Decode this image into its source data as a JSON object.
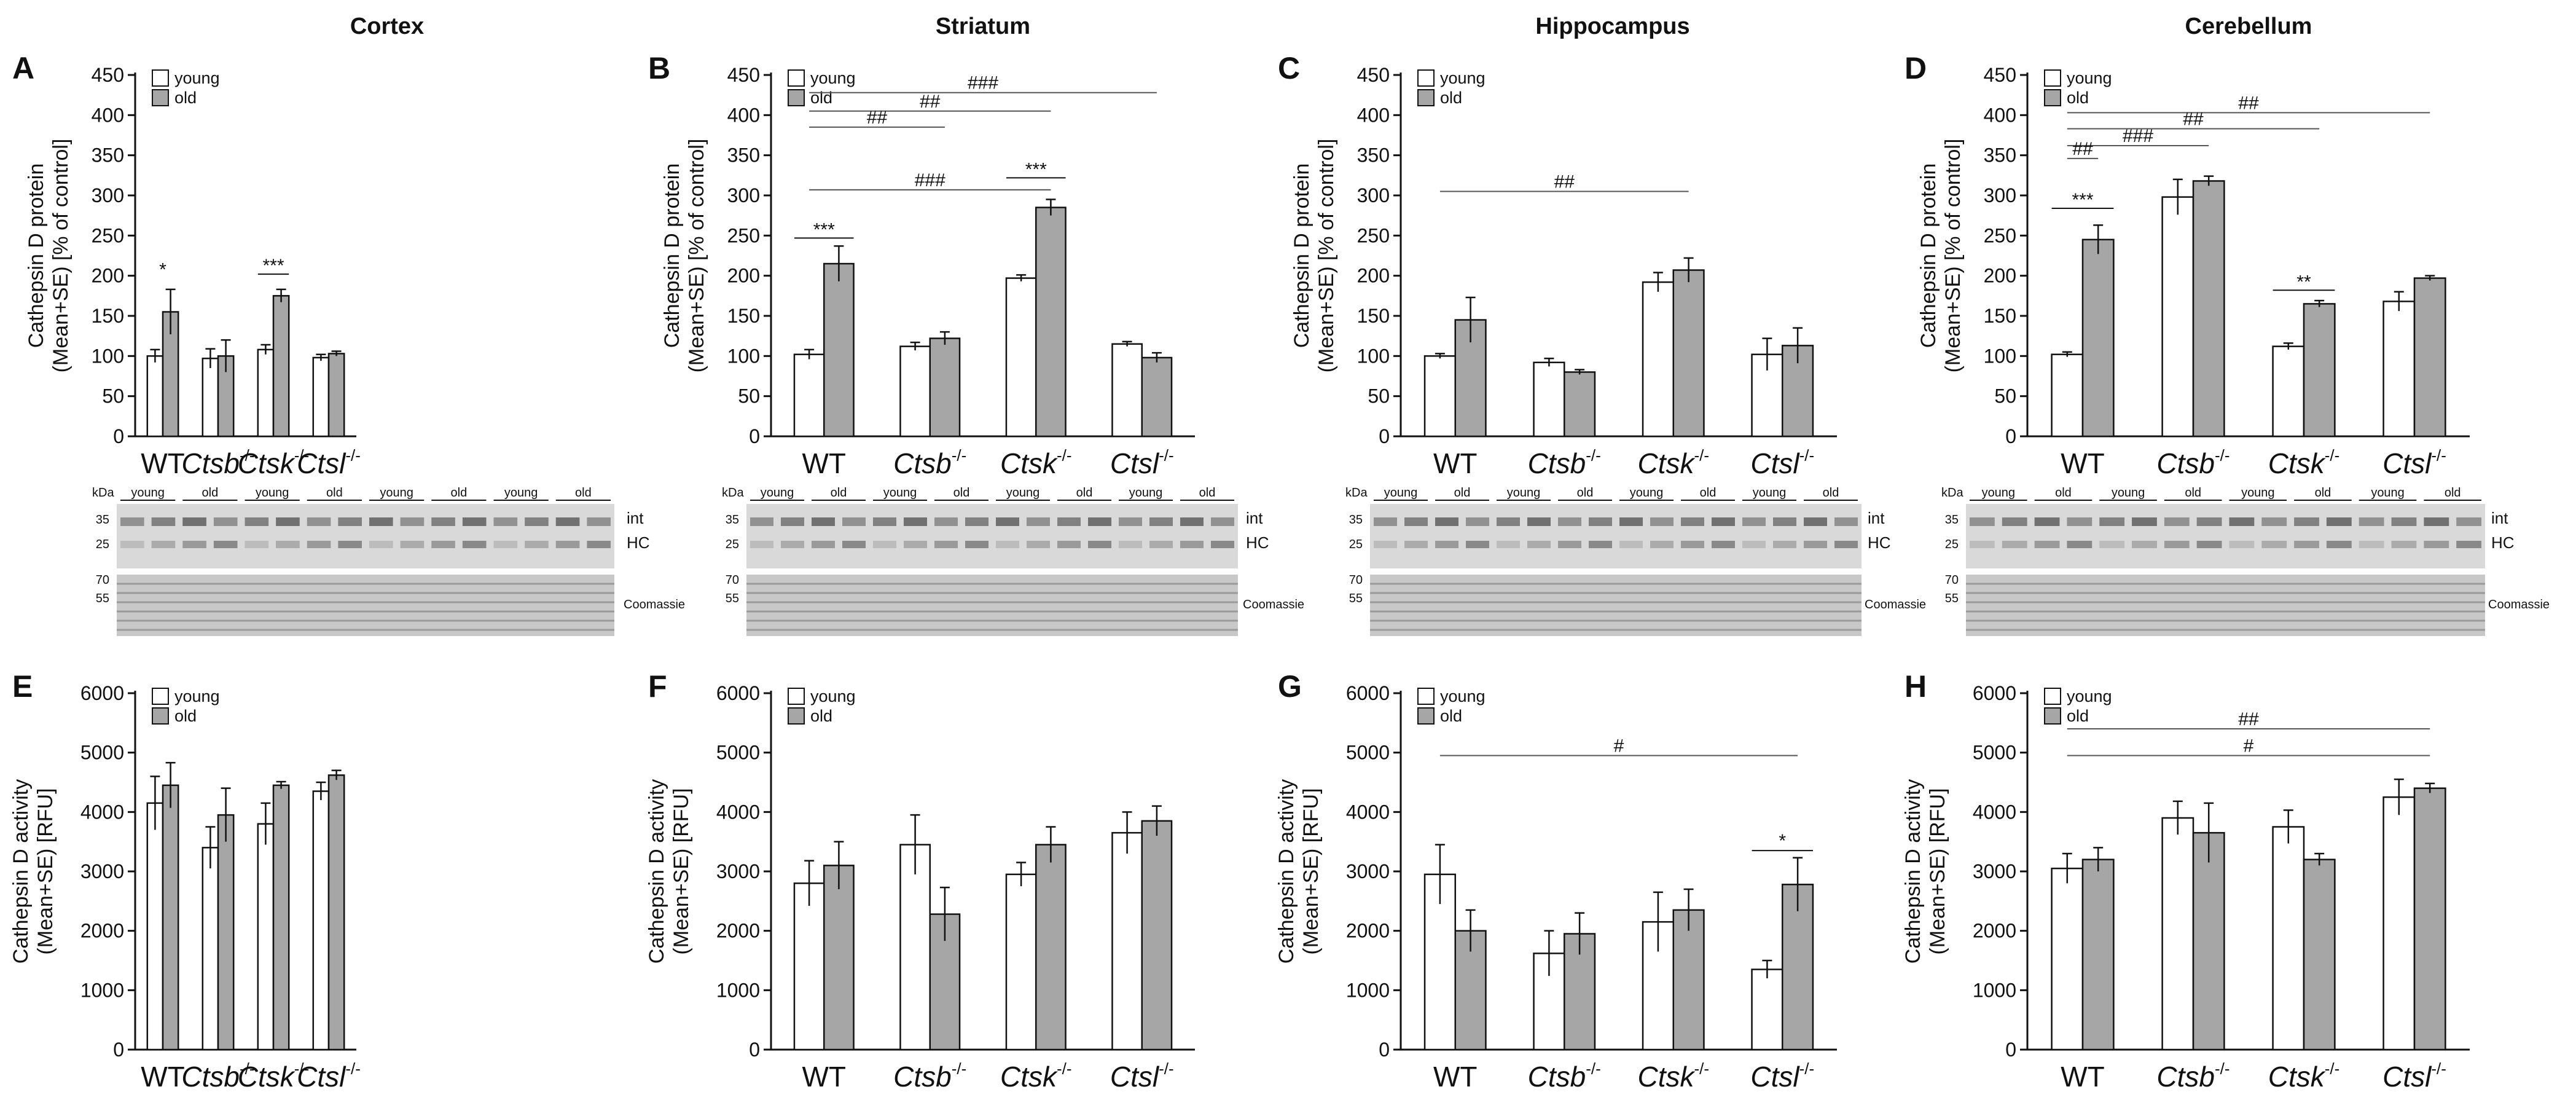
{
  "regions": [
    "Cortex",
    "Striatum",
    "Hippocampus",
    "Cerebellum"
  ],
  "legend": {
    "young": "young",
    "old": "old"
  },
  "colors": {
    "young": "#ffffff",
    "old": "#a6a6a6",
    "axis": "#111111"
  },
  "blot_labels": {
    "kda": "kDa",
    "int": "int",
    "hc": "HC",
    "coomassie": "Coomassie",
    "young": "young",
    "old": "old",
    "marker_a": "35",
    "marker_b": "25",
    "marker_c": "70",
    "marker_d": "55"
  },
  "chart_data": [
    {
      "panel": "A",
      "type": "bar",
      "title": "Cortex",
      "ylabel_line1": "Cathepsin D protein",
      "ylabel_line2": "(Mean+SE) [% of control]",
      "ylim": [
        0,
        450
      ],
      "yticks": [
        0,
        50,
        100,
        150,
        200,
        250,
        300,
        350,
        400,
        450
      ],
      "categories": [
        "WT",
        "Ctsb",
        "Ctsk",
        "Ctsl"
      ],
      "cat_suffix": "-/-",
      "series": [
        {
          "name": "young",
          "values": [
            100,
            97,
            108,
            98
          ],
          "errors": [
            8,
            12,
            6,
            4
          ]
        },
        {
          "name": "old",
          "values": [
            155,
            100,
            175,
            103
          ],
          "errors": [
            28,
            20,
            8,
            3
          ]
        }
      ],
      "annotations": [
        {
          "text": "*",
          "cat": 0,
          "value": 200
        },
        {
          "text": "***",
          "cat": 2,
          "value": 205
        }
      ],
      "brackets": []
    },
    {
      "panel": "B",
      "type": "bar",
      "title": "Striatum",
      "ylabel_line1": "Cathepsin D protein",
      "ylabel_line2": "(Mean+SE) [% of control]",
      "ylim": [
        0,
        450
      ],
      "yticks": [
        0,
        50,
        100,
        150,
        200,
        250,
        300,
        350,
        400,
        450
      ],
      "categories": [
        "WT",
        "Ctsb",
        "Ctsk",
        "Ctsl"
      ],
      "cat_suffix": "-/-",
      "series": [
        {
          "name": "young",
          "values": [
            102,
            112,
            197,
            115
          ],
          "errors": [
            6,
            5,
            4,
            3
          ]
        },
        {
          "name": "old",
          "values": [
            215,
            122,
            285,
            98
          ],
          "errors": [
            22,
            8,
            10,
            6
          ]
        }
      ],
      "annotations": [
        {
          "text": "***",
          "cat": 0,
          "value": 250
        },
        {
          "text": "***",
          "cat": 2,
          "value": 325
        }
      ],
      "brackets": [
        {
          "text": "###",
          "from": 0,
          "to": 3,
          "value": 428
        },
        {
          "text": "##",
          "from": 0,
          "to": 2,
          "value": 405
        },
        {
          "text": "##",
          "from": 0,
          "to": 1,
          "value": 385
        },
        {
          "text": "###",
          "from": 0,
          "to": 2,
          "value": 307
        }
      ]
    },
    {
      "panel": "C",
      "type": "bar",
      "title": "Hippocampus",
      "ylabel_line1": "Cathepsin D protein",
      "ylabel_line2": "(Mean+SE) [% of control]",
      "ylim": [
        0,
        450
      ],
      "yticks": [
        0,
        50,
        100,
        150,
        200,
        250,
        300,
        350,
        400,
        450
      ],
      "categories": [
        "WT",
        "Ctsb",
        "Ctsk",
        "Ctsl"
      ],
      "cat_suffix": "-/-",
      "series": [
        {
          "name": "young",
          "values": [
            100,
            92,
            192,
            102
          ],
          "errors": [
            3,
            5,
            12,
            20
          ]
        },
        {
          "name": "old",
          "values": [
            145,
            80,
            207,
            113
          ],
          "errors": [
            28,
            3,
            15,
            22
          ]
        }
      ],
      "annotations": [],
      "brackets": [
        {
          "text": "##",
          "from": 0,
          "to": 2,
          "value": 305
        }
      ]
    },
    {
      "panel": "D",
      "type": "bar",
      "title": "Cerebellum",
      "ylabel_line1": "Cathepsin D protein",
      "ylabel_line2": "(Mean+SE) [% of control]",
      "ylim": [
        0,
        450
      ],
      "yticks": [
        0,
        50,
        100,
        150,
        200,
        250,
        300,
        350,
        400,
        450
      ],
      "categories": [
        "WT",
        "Ctsb",
        "Ctsk",
        "Ctsl"
      ],
      "cat_suffix": "-/-",
      "series": [
        {
          "name": "young",
          "values": [
            102,
            298,
            112,
            168
          ],
          "errors": [
            3,
            22,
            4,
            12
          ]
        },
        {
          "name": "old",
          "values": [
            245,
            318,
            165,
            197
          ],
          "errors": [
            18,
            6,
            4,
            3
          ]
        }
      ],
      "annotations": [
        {
          "text": "***",
          "cat": 0,
          "value": 287
        },
        {
          "text": "**",
          "cat": 2,
          "value": 185
        }
      ],
      "brackets": [
        {
          "text": "##",
          "from": 0,
          "to": 3,
          "value": 403
        },
        {
          "text": "##",
          "from": 0,
          "to": 2,
          "value": 383
        },
        {
          "text": "###",
          "from": 0,
          "to": 1,
          "value": 362
        },
        {
          "text": "##",
          "from": 0,
          "to": 0,
          "value": 346
        }
      ]
    },
    {
      "panel": "E",
      "type": "bar",
      "ylabel_line1": "Cathepsin D activity",
      "ylabel_line2": "(Mean+SE) [RFU]",
      "ylim": [
        0,
        6000
      ],
      "yticks": [
        0,
        1000,
        2000,
        3000,
        4000,
        5000,
        6000
      ],
      "categories": [
        "WT",
        "Ctsb",
        "Ctsk",
        "Ctsl"
      ],
      "cat_suffix": "-/-",
      "series": [
        {
          "name": "young",
          "values": [
            4150,
            3400,
            3800,
            4350
          ],
          "errors": [
            450,
            350,
            350,
            150
          ]
        },
        {
          "name": "old",
          "values": [
            4450,
            3950,
            4450,
            4620
          ],
          "errors": [
            380,
            450,
            60,
            80
          ]
        }
      ],
      "annotations": [],
      "brackets": []
    },
    {
      "panel": "F",
      "type": "bar",
      "ylabel_line1": "Cathepsin D activity",
      "ylabel_line2": "(Mean+SE) [RFU]",
      "ylim": [
        0,
        6000
      ],
      "yticks": [
        0,
        1000,
        2000,
        3000,
        4000,
        5000,
        6000
      ],
      "categories": [
        "WT",
        "Ctsb",
        "Ctsk",
        "Ctsl"
      ],
      "cat_suffix": "-/-",
      "series": [
        {
          "name": "young",
          "values": [
            2800,
            3450,
            2950,
            3650
          ],
          "errors": [
            380,
            500,
            200,
            350
          ]
        },
        {
          "name": "old",
          "values": [
            3100,
            2280,
            3450,
            3850
          ],
          "errors": [
            400,
            450,
            300,
            250
          ]
        }
      ],
      "annotations": [],
      "brackets": []
    },
    {
      "panel": "G",
      "type": "bar",
      "ylabel_line1": "Cathepsin D activity",
      "ylabel_line2": "(Mean+SE) [RFU]",
      "ylim": [
        0,
        6000
      ],
      "yticks": [
        0,
        1000,
        2000,
        3000,
        4000,
        5000,
        6000
      ],
      "categories": [
        "WT",
        "Ctsb",
        "Ctsk",
        "Ctsl"
      ],
      "cat_suffix": "-/-",
      "series": [
        {
          "name": "young",
          "values": [
            2950,
            1620,
            2150,
            1350
          ],
          "errors": [
            500,
            380,
            500,
            150
          ]
        },
        {
          "name": "old",
          "values": [
            2000,
            1950,
            2350,
            2780
          ],
          "errors": [
            350,
            350,
            350,
            450
          ]
        }
      ],
      "annotations": [],
      "brackets": [
        {
          "text": "#",
          "from": 0,
          "to": 3,
          "value": 4950
        },
        {
          "text": "*",
          "cat_line": 3,
          "value": 3350
        }
      ]
    },
    {
      "panel": "H",
      "type": "bar",
      "ylabel_line1": "Cathepsin D activity",
      "ylabel_line2": "(Mean+SE) [RFU]",
      "ylim": [
        0,
        6000
      ],
      "yticks": [
        0,
        1000,
        2000,
        3000,
        4000,
        5000,
        6000
      ],
      "categories": [
        "WT",
        "Ctsb",
        "Ctsk",
        "Ctsl"
      ],
      "cat_suffix": "-/-",
      "series": [
        {
          "name": "young",
          "values": [
            3050,
            3900,
            3750,
            4250
          ],
          "errors": [
            250,
            280,
            280,
            300
          ]
        },
        {
          "name": "old",
          "values": [
            3200,
            3650,
            3200,
            4400
          ],
          "errors": [
            200,
            500,
            100,
            80
          ]
        }
      ],
      "annotations": [],
      "brackets": [
        {
          "text": "##",
          "from": 0,
          "to": 3,
          "value": 5400
        },
        {
          "text": "#",
          "from": 0,
          "to": 3,
          "value": 4950
        }
      ]
    }
  ]
}
